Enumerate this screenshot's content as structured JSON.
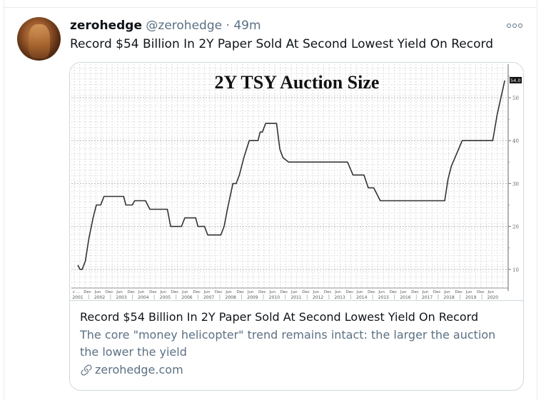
{
  "tweet": {
    "display_name": "zerohedge",
    "handle": "@zerohedge",
    "separator": "·",
    "time": "49m",
    "text": "Record $54 Billion In 2Y Paper Sold At Second Lowest Yield On Record",
    "more_icon": "more-horizontal-icon"
  },
  "card": {
    "title": "Record $54 Billion In 2Y Paper Sold At Second Lowest Yield On Record",
    "description": "The core \"money helicopter\" trend remains intact: the larger the auction the lower the yield",
    "domain": "zerohedge.com",
    "link_icon": "link-icon"
  },
  "chart_data": {
    "type": "line",
    "title": "2Y TSY Auction Size",
    "xlabel": "",
    "ylabel": "",
    "ylim": [
      5,
      56
    ],
    "yticks": [
      10,
      20,
      30,
      40,
      50
    ],
    "last_value_label": "54.0",
    "grid": true,
    "x_tick_labels_top": [
      "c ...",
      "Dec",
      "Jun",
      "Dec",
      "Jun",
      "Dec",
      "Jun",
      "Dec",
      "Jun",
      "Dec",
      "Jun",
      "Dec",
      "Jun",
      "Dec",
      "Jun",
      "Dec",
      "Jun",
      "Dec",
      "Jun",
      "Dec",
      "Jun",
      "Dec",
      "Jun",
      "Dec",
      "Jun",
      "Dec",
      "Jun",
      "Dec",
      "Jun",
      "Dec",
      "Jun",
      "Dec",
      "Jun",
      "Dec",
      "Jun",
      "Dec",
      "Jun",
      "Dec",
      "Jun"
    ],
    "x_year_labels": [
      "2001",
      "2002",
      "2003",
      "2004",
      "2005",
      "2006",
      "2007",
      "2008",
      "2009",
      "2010",
      "2011",
      "2012",
      "2013",
      "2014",
      "2015",
      "2016",
      "2017",
      "2018",
      "2019",
      "2020"
    ],
    "series": [
      {
        "name": "2Y TSY Auction Size ($B)",
        "x": [
          2001.0,
          2001.1,
          2001.2,
          2001.35,
          2001.5,
          2001.7,
          2001.85,
          2002.05,
          2002.2,
          2003.1,
          2003.2,
          2003.5,
          2003.6,
          2004.1,
          2004.2,
          2004.3,
          2005.1,
          2005.25,
          2005.75,
          2005.9,
          2006.4,
          2006.5,
          2006.8,
          2006.95,
          2007.55,
          2007.7,
          2007.85,
          2008.1,
          2008.25,
          2008.4,
          2008.5,
          2008.6,
          2008.85,
          2009.25,
          2009.35,
          2009.45,
          2009.6,
          2010.1,
          2010.25,
          2010.4,
          2010.65,
          2013.35,
          2013.6,
          2014.1,
          2014.3,
          2014.55,
          2014.85,
          2017.8,
          2017.95,
          2018.1,
          2018.6,
          2020.0,
          2020.2,
          2020.55
        ],
        "values": [
          11,
          10,
          10,
          12,
          17,
          22,
          25,
          25,
          27,
          27,
          25,
          25,
          26,
          26,
          25,
          24,
          24,
          20,
          20,
          22,
          22,
          20,
          20,
          18,
          18,
          20,
          24,
          30,
          30,
          32,
          34,
          36,
          40,
          40,
          42,
          42,
          44,
          44,
          38,
          36,
          35,
          35,
          32,
          32,
          29,
          29,
          26,
          26,
          31,
          34,
          40,
          40,
          46,
          54
        ]
      }
    ]
  }
}
